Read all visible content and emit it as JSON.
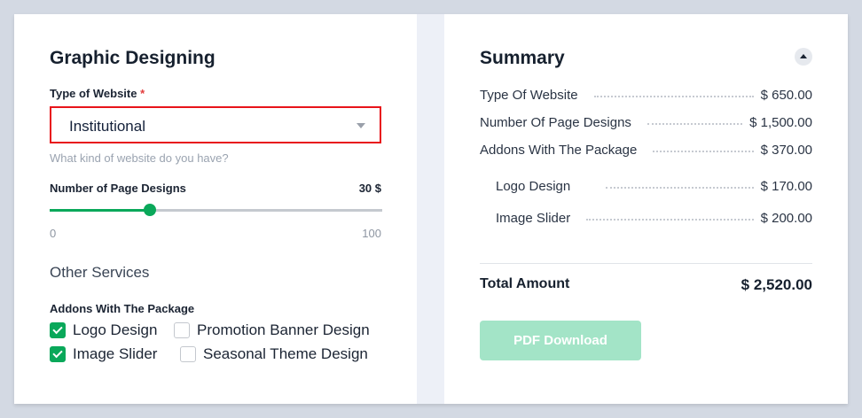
{
  "form": {
    "title": "Graphic Designing",
    "type_label": "Type of Website",
    "required_mark": "*",
    "type_value": "Institutional",
    "type_hint": "What kind of website do you have?",
    "pages_label": "Number of Page Designs",
    "pages_value": "30 $",
    "slider": {
      "min": "0",
      "max": "100",
      "value": 30
    },
    "other_services": "Other Services",
    "addons_label": "Addons With The Package",
    "addons": [
      {
        "label": "Logo Design",
        "checked": true
      },
      {
        "label": "Promotion Banner Design",
        "checked": false
      },
      {
        "label": "Image Slider",
        "checked": true
      },
      {
        "label": "Seasonal Theme Design",
        "checked": false
      }
    ]
  },
  "summary": {
    "title": "Summary",
    "rows": [
      {
        "label": "Type Of Website",
        "value": "$ 650.00"
      },
      {
        "label": "Number Of Page Designs",
        "value": "$ 1,500.00"
      },
      {
        "label": "Addons With The Package",
        "value": "$ 370.00"
      },
      {
        "label": "Logo Design",
        "value": "$ 170.00"
      },
      {
        "label": "Image Slider",
        "value": "$ 200.00"
      }
    ],
    "total_label": "Total Amount",
    "total_value": "$ 2,520.00",
    "pdf_button": "PDF Download"
  },
  "colors": {
    "accent": "#0aa85a",
    "error_border": "#e8141a",
    "button_disabled": "#a3e4c7"
  }
}
